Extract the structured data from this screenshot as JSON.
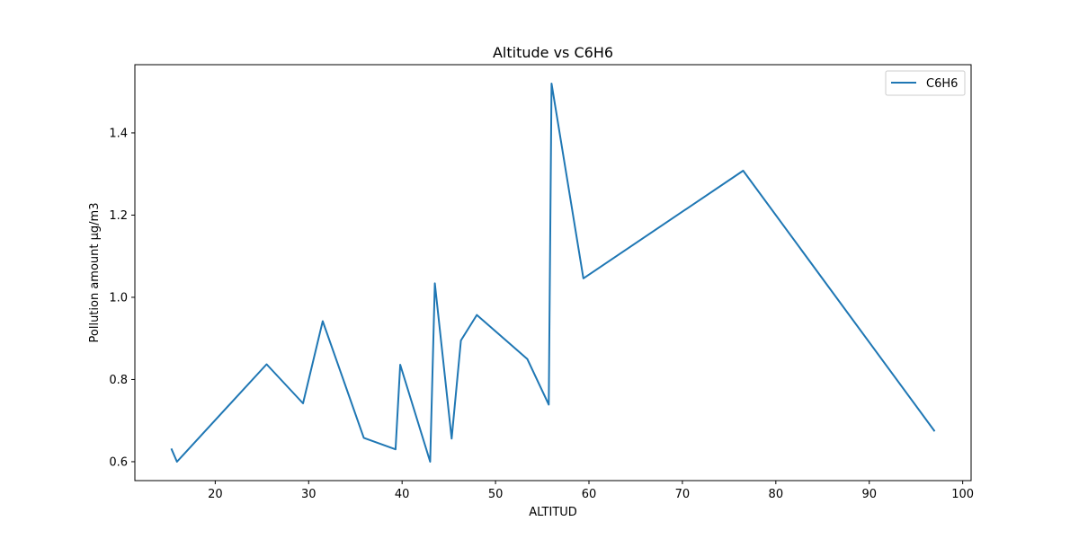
{
  "chart_data": {
    "type": "line",
    "title": "Altitude vs C6H6",
    "xlabel": "ALTITUD",
    "ylabel": "Pollution amount µg/m3",
    "xlim": [
      11.4,
      100.9
    ],
    "ylim": [
      0.554,
      1.566
    ],
    "xticks": [
      20,
      30,
      40,
      50,
      60,
      70,
      80,
      90,
      100
    ],
    "yticks": [
      0.6,
      0.8,
      1.0,
      1.2,
      1.4
    ],
    "ytick_labels": [
      "0.6",
      "0.8",
      "1.0",
      "1.2",
      "1.4"
    ],
    "grid": false,
    "legend_position": "upper right",
    "series": [
      {
        "name": "C6H6",
        "color": "#1f77b4",
        "x": [
          15.3,
          15.9,
          25.5,
          29.4,
          31.5,
          35.9,
          39.3,
          39.8,
          43.0,
          43.5,
          45.3,
          46.3,
          48.0,
          53.4,
          55.7,
          56.0,
          59.4,
          76.5,
          97.0
        ],
        "y": [
          0.632,
          0.6,
          0.837,
          0.742,
          0.942,
          0.658,
          0.63,
          0.836,
          0.6,
          1.034,
          0.656,
          0.895,
          0.957,
          0.85,
          0.739,
          1.52,
          1.046,
          1.308,
          0.674
        ]
      }
    ]
  }
}
